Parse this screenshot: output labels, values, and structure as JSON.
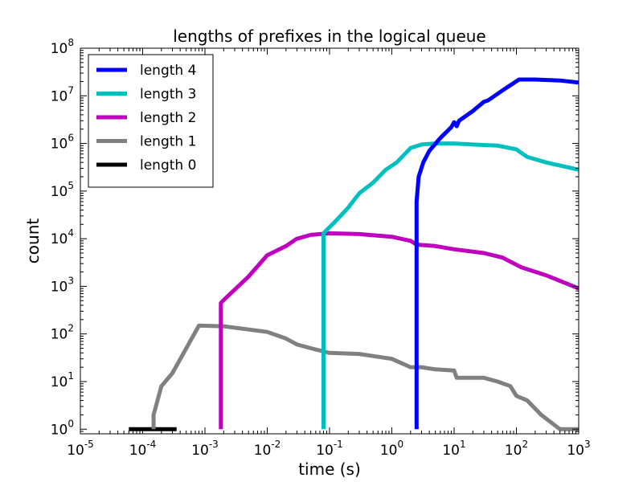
{
  "chart_data": {
    "type": "line",
    "title": "lengths of prefixes in the logical queue",
    "xlabel": "time (s)",
    "ylabel": "count",
    "xscale": "log",
    "yscale": "log",
    "xlim": [
      1e-05,
      1000
    ],
    "ylim": [
      0.8,
      100000000
    ],
    "x_ticks": [
      {
        "base": "10",
        "exp": "-5",
        "value": 1e-05
      },
      {
        "base": "10",
        "exp": "-4",
        "value": 0.0001
      },
      {
        "base": "10",
        "exp": "-3",
        "value": 0.001
      },
      {
        "base": "10",
        "exp": "-2",
        "value": 0.01
      },
      {
        "base": "10",
        "exp": "-1",
        "value": 0.1
      },
      {
        "base": "10",
        "exp": "0",
        "value": 1
      },
      {
        "base": "10",
        "exp": "1",
        "value": 10
      },
      {
        "base": "10",
        "exp": "2",
        "value": 100
      },
      {
        "base": "10",
        "exp": "3",
        "value": 1000
      }
    ],
    "y_ticks": [
      {
        "base": "10",
        "exp": "0",
        "value": 1
      },
      {
        "base": "10",
        "exp": "1",
        "value": 10
      },
      {
        "base": "10",
        "exp": "2",
        "value": 100
      },
      {
        "base": "10",
        "exp": "3",
        "value": 1000
      },
      {
        "base": "10",
        "exp": "4",
        "value": 10000
      },
      {
        "base": "10",
        "exp": "5",
        "value": 100000
      },
      {
        "base": "10",
        "exp": "6",
        "value": 1000000
      },
      {
        "base": "10",
        "exp": "7",
        "value": 10000000
      },
      {
        "base": "10",
        "exp": "8",
        "value": 100000000
      }
    ],
    "grid": false,
    "legend_position": "top-left",
    "series": [
      {
        "name": "length 4",
        "color": "#0000ff",
        "points": [
          [
            2.5,
            1
          ],
          [
            2.5,
            60000
          ],
          [
            2.7,
            200000
          ],
          [
            3.2,
            400000
          ],
          [
            4,
            700000
          ],
          [
            6,
            1300000
          ],
          [
            9,
            2200000
          ],
          [
            10,
            2800000
          ],
          [
            11,
            2300000
          ],
          [
            12,
            3000000
          ],
          [
            20,
            4800000
          ],
          [
            30,
            7500000
          ],
          [
            35,
            8000000
          ],
          [
            60,
            13000000
          ],
          [
            110,
            22000000
          ],
          [
            200,
            22000000
          ],
          [
            500,
            21000000
          ],
          [
            1000,
            19000000
          ]
        ]
      },
      {
        "name": "length 3",
        "color": "#00bfbf",
        "points": [
          [
            0.08,
            1
          ],
          [
            0.08,
            13000
          ],
          [
            0.12,
            22000
          ],
          [
            0.2,
            45000
          ],
          [
            0.3,
            90000
          ],
          [
            0.5,
            150000
          ],
          [
            0.8,
            280000
          ],
          [
            1.2,
            400000
          ],
          [
            2,
            800000
          ],
          [
            3,
            950000
          ],
          [
            5,
            1000000
          ],
          [
            10,
            1000000
          ],
          [
            20,
            950000
          ],
          [
            50,
            900000
          ],
          [
            100,
            750000
          ],
          [
            150,
            520000
          ],
          [
            300,
            400000
          ],
          [
            1000,
            280000
          ]
        ]
      },
      {
        "name": "length 2",
        "color": "#bf00bf",
        "points": [
          [
            0.0018,
            1
          ],
          [
            0.0018,
            450
          ],
          [
            0.0022,
            580
          ],
          [
            0.005,
            1600
          ],
          [
            0.01,
            4500
          ],
          [
            0.02,
            7000
          ],
          [
            0.03,
            10000
          ],
          [
            0.05,
            12000
          ],
          [
            0.1,
            13000
          ],
          [
            0.3,
            12500
          ],
          [
            1,
            11000
          ],
          [
            2,
            9000
          ],
          [
            2.5,
            7500
          ],
          [
            5,
            7000
          ],
          [
            10,
            6000
          ],
          [
            30,
            5000
          ],
          [
            60,
            4000
          ],
          [
            120,
            2500
          ],
          [
            300,
            1700
          ],
          [
            1000,
            900
          ]
        ]
      },
      {
        "name": "length 1",
        "color": "#808080",
        "points": [
          [
            0.00015,
            1
          ],
          [
            0.00015,
            2
          ],
          [
            0.0002,
            8
          ],
          [
            0.0003,
            15
          ],
          [
            0.0008,
            150
          ],
          [
            0.002,
            145
          ],
          [
            0.01,
            110
          ],
          [
            0.02,
            80
          ],
          [
            0.03,
            60
          ],
          [
            0.05,
            50
          ],
          [
            0.1,
            40
          ],
          [
            0.3,
            38
          ],
          [
            1,
            30
          ],
          [
            2,
            20
          ],
          [
            3,
            20
          ],
          [
            5,
            18
          ],
          [
            10,
            17
          ],
          [
            11,
            12
          ],
          [
            30,
            12
          ],
          [
            50,
            10
          ],
          [
            80,
            8
          ],
          [
            100,
            5
          ],
          [
            150,
            4
          ],
          [
            250,
            2
          ],
          [
            500,
            1
          ],
          [
            1000,
            1
          ]
        ]
      },
      {
        "name": "length 0",
        "color": "#000000",
        "points": [
          [
            6e-05,
            1
          ],
          [
            0.00035,
            1
          ]
        ]
      }
    ]
  }
}
